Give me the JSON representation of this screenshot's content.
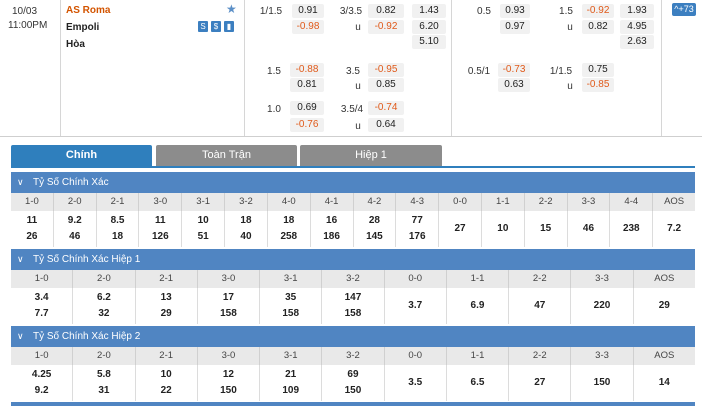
{
  "match": {
    "date": "10/03",
    "time": "11:00PM",
    "home": "AS Roma",
    "away": "Empoli",
    "draw": "Hòa",
    "icons": [
      "S",
      "$",
      "chart"
    ],
    "more": "+73"
  },
  "odds": {
    "r1": {
      "h1": "1/1.5",
      "v1": "0.91",
      "h2": "3/3.5",
      "v2": "0.82",
      "x1": "1.43",
      "h3": "0.5",
      "v3": "0.93",
      "h4": "1.5",
      "v4": "-0.92",
      "x2": "1.93"
    },
    "r2": {
      "v1": "-0.98",
      "u": "u",
      "v2": "-0.92",
      "x1": "6.20",
      "v3": "0.97",
      "u2": "u",
      "v4": "0.82",
      "x2": "4.95"
    },
    "r3": {
      "x1": "5.10",
      "x2": "2.63"
    },
    "r4": {
      "h1": "1.5",
      "v1": "-0.88",
      "h2": "3.5",
      "v2": "-0.95",
      "h3": "0.5/1",
      "v3": "-0.73",
      "h4": "1/1.5",
      "v4": "0.75"
    },
    "r5": {
      "v1": "0.81",
      "u": "u",
      "v2": "0.85",
      "v3": "0.63",
      "u2": "u",
      "v4": "-0.85"
    },
    "r6": {
      "h1": "1.0",
      "v1": "0.69",
      "h2": "3.5/4",
      "v2": "-0.74"
    },
    "r7": {
      "v1": "-0.76",
      "u": "u",
      "v2": "0.64"
    }
  },
  "tabs": [
    "Chính",
    "Toàn Trận",
    "Hiệp 1"
  ],
  "sections": [
    {
      "title": "Tỷ Số Chính Xác",
      "cols": [
        "1-0",
        "2-0",
        "2-1",
        "3-0",
        "3-1",
        "3-2",
        "4-0",
        "4-1",
        "4-2",
        "4-3",
        "0-0",
        "1-1",
        "2-2",
        "3-3",
        "4-4",
        "AOS"
      ],
      "top": [
        "11",
        "9.2",
        "8.5",
        "11",
        "10",
        "18",
        "18",
        "16",
        "28",
        "77",
        "27",
        "10",
        "15",
        "46",
        "238",
        "7.2"
      ],
      "bot": [
        "26",
        "46",
        "18",
        "126",
        "51",
        "40",
        "258",
        "186",
        "145",
        "176",
        "",
        "",
        "",
        "",
        "",
        ""
      ]
    },
    {
      "title": "Tỷ Số Chính Xác Hiệp 1",
      "cols": [
        "1-0",
        "2-0",
        "2-1",
        "3-0",
        "3-1",
        "3-2",
        "0-0",
        "1-1",
        "2-2",
        "3-3",
        "AOS"
      ],
      "top": [
        "3.4",
        "6.2",
        "13",
        "17",
        "35",
        "147",
        "3.7",
        "6.9",
        "47",
        "220",
        "29"
      ],
      "bot": [
        "7.7",
        "32",
        "29",
        "158",
        "158",
        "158",
        "",
        "",
        "",
        "",
        ""
      ]
    },
    {
      "title": "Tỷ Số Chính Xác Hiệp 2",
      "cols": [
        "1-0",
        "2-0",
        "2-1",
        "3-0",
        "3-1",
        "3-2",
        "0-0",
        "1-1",
        "2-2",
        "3-3",
        "AOS"
      ],
      "top": [
        "4.25",
        "5.8",
        "10",
        "12",
        "21",
        "69",
        "3.5",
        "6.5",
        "27",
        "150",
        "14"
      ],
      "bot": [
        "9.2",
        "31",
        "22",
        "150",
        "109",
        "150",
        "",
        "",
        "",
        "",
        ""
      ]
    }
  ]
}
